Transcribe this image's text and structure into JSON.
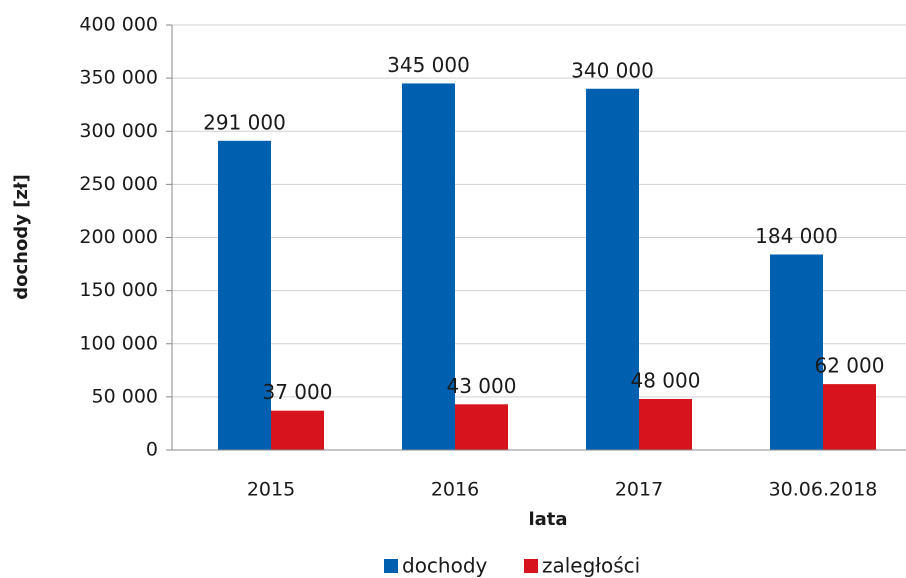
{
  "chart_data": {
    "type": "bar",
    "categories": [
      "2015",
      "2016",
      "2017",
      "30.06.2018"
    ],
    "series": [
      {
        "name": "dochody",
        "color": "#0060b0",
        "values": [
          291000,
          345000,
          340000,
          184000
        ],
        "value_labels": [
          "291 000",
          "345 000",
          "340 000",
          "184 000"
        ]
      },
      {
        "name": "zaległości",
        "color": "#d7141d",
        "values": [
          37000,
          43000,
          48000,
          62000
        ],
        "value_labels": [
          "37 000",
          "43 000",
          "48 000",
          "62 000"
        ]
      }
    ],
    "ylim": [
      0,
      400000
    ],
    "yticks": [
      0,
      {
        "value": 50000,
        "label": "50 000"
      },
      {
        "value": 100000,
        "label": "100 000"
      },
      {
        "value": 150000,
        "label": "150 000"
      },
      {
        "value": 200000,
        "label": "200 000"
      },
      {
        "value": 250000,
        "label": "250 000"
      },
      {
        "value": 300000,
        "label": "300 000"
      },
      {
        "value": 350000,
        "label": "350 000"
      },
      {
        "value": 400000,
        "label": "400 000"
      }
    ],
    "xlabel": "lata",
    "ylabel": "dochody [zł]",
    "grid": true,
    "legend": "bottom"
  }
}
